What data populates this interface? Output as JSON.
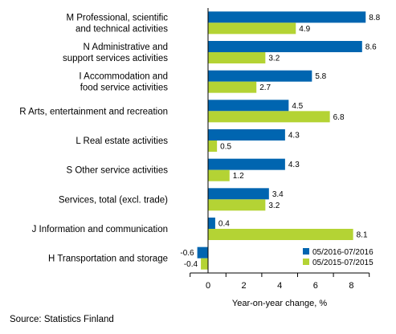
{
  "chart_data": {
    "type": "bar",
    "orientation": "horizontal",
    "categories": [
      [
        "M Professional, scientific",
        "and technical activities"
      ],
      [
        "N Administrative and",
        "support services activities"
      ],
      [
        "I Accommodation and",
        "food service activities"
      ],
      [
        "R Arts, entertainment and recreation"
      ],
      [
        "L Real estate activities"
      ],
      [
        "S Other service activities"
      ],
      [
        "Services, total (excl. trade)"
      ],
      [
        "J Information and communication"
      ],
      [
        "H Transportation and storage"
      ]
    ],
    "series": [
      {
        "name": "05/2016-07/2016",
        "color": "#0065b0",
        "values": [
          8.8,
          8.6,
          5.8,
          4.5,
          4.3,
          4.3,
          3.4,
          0.4,
          -0.6
        ],
        "labels": [
          "8.8",
          "8.6",
          "5.8",
          "4.5",
          "4.3",
          "4.3",
          "3.4",
          "0.4",
          "-0.6"
        ]
      },
      {
        "name": "05/2015-07/2015",
        "color": "#b4d334",
        "values": [
          4.9,
          3.2,
          2.7,
          6.8,
          0.5,
          1.2,
          3.2,
          8.1,
          -0.4
        ],
        "labels": [
          "4.9",
          "3.2",
          "2.7",
          "6.8",
          "0.5",
          "1.2",
          "3.2",
          "8.1",
          "-0.4"
        ]
      }
    ],
    "xlim": [
      -1,
      9
    ],
    "xticks": [
      0,
      2,
      4,
      6,
      8
    ],
    "xtick_labels": [
      "0",
      "2",
      "4",
      "6",
      "8"
    ],
    "xlabel": "Year-on-year change, %",
    "legend_position": "bottom-right",
    "grid": false
  },
  "source": "Source: Statistics Finland"
}
